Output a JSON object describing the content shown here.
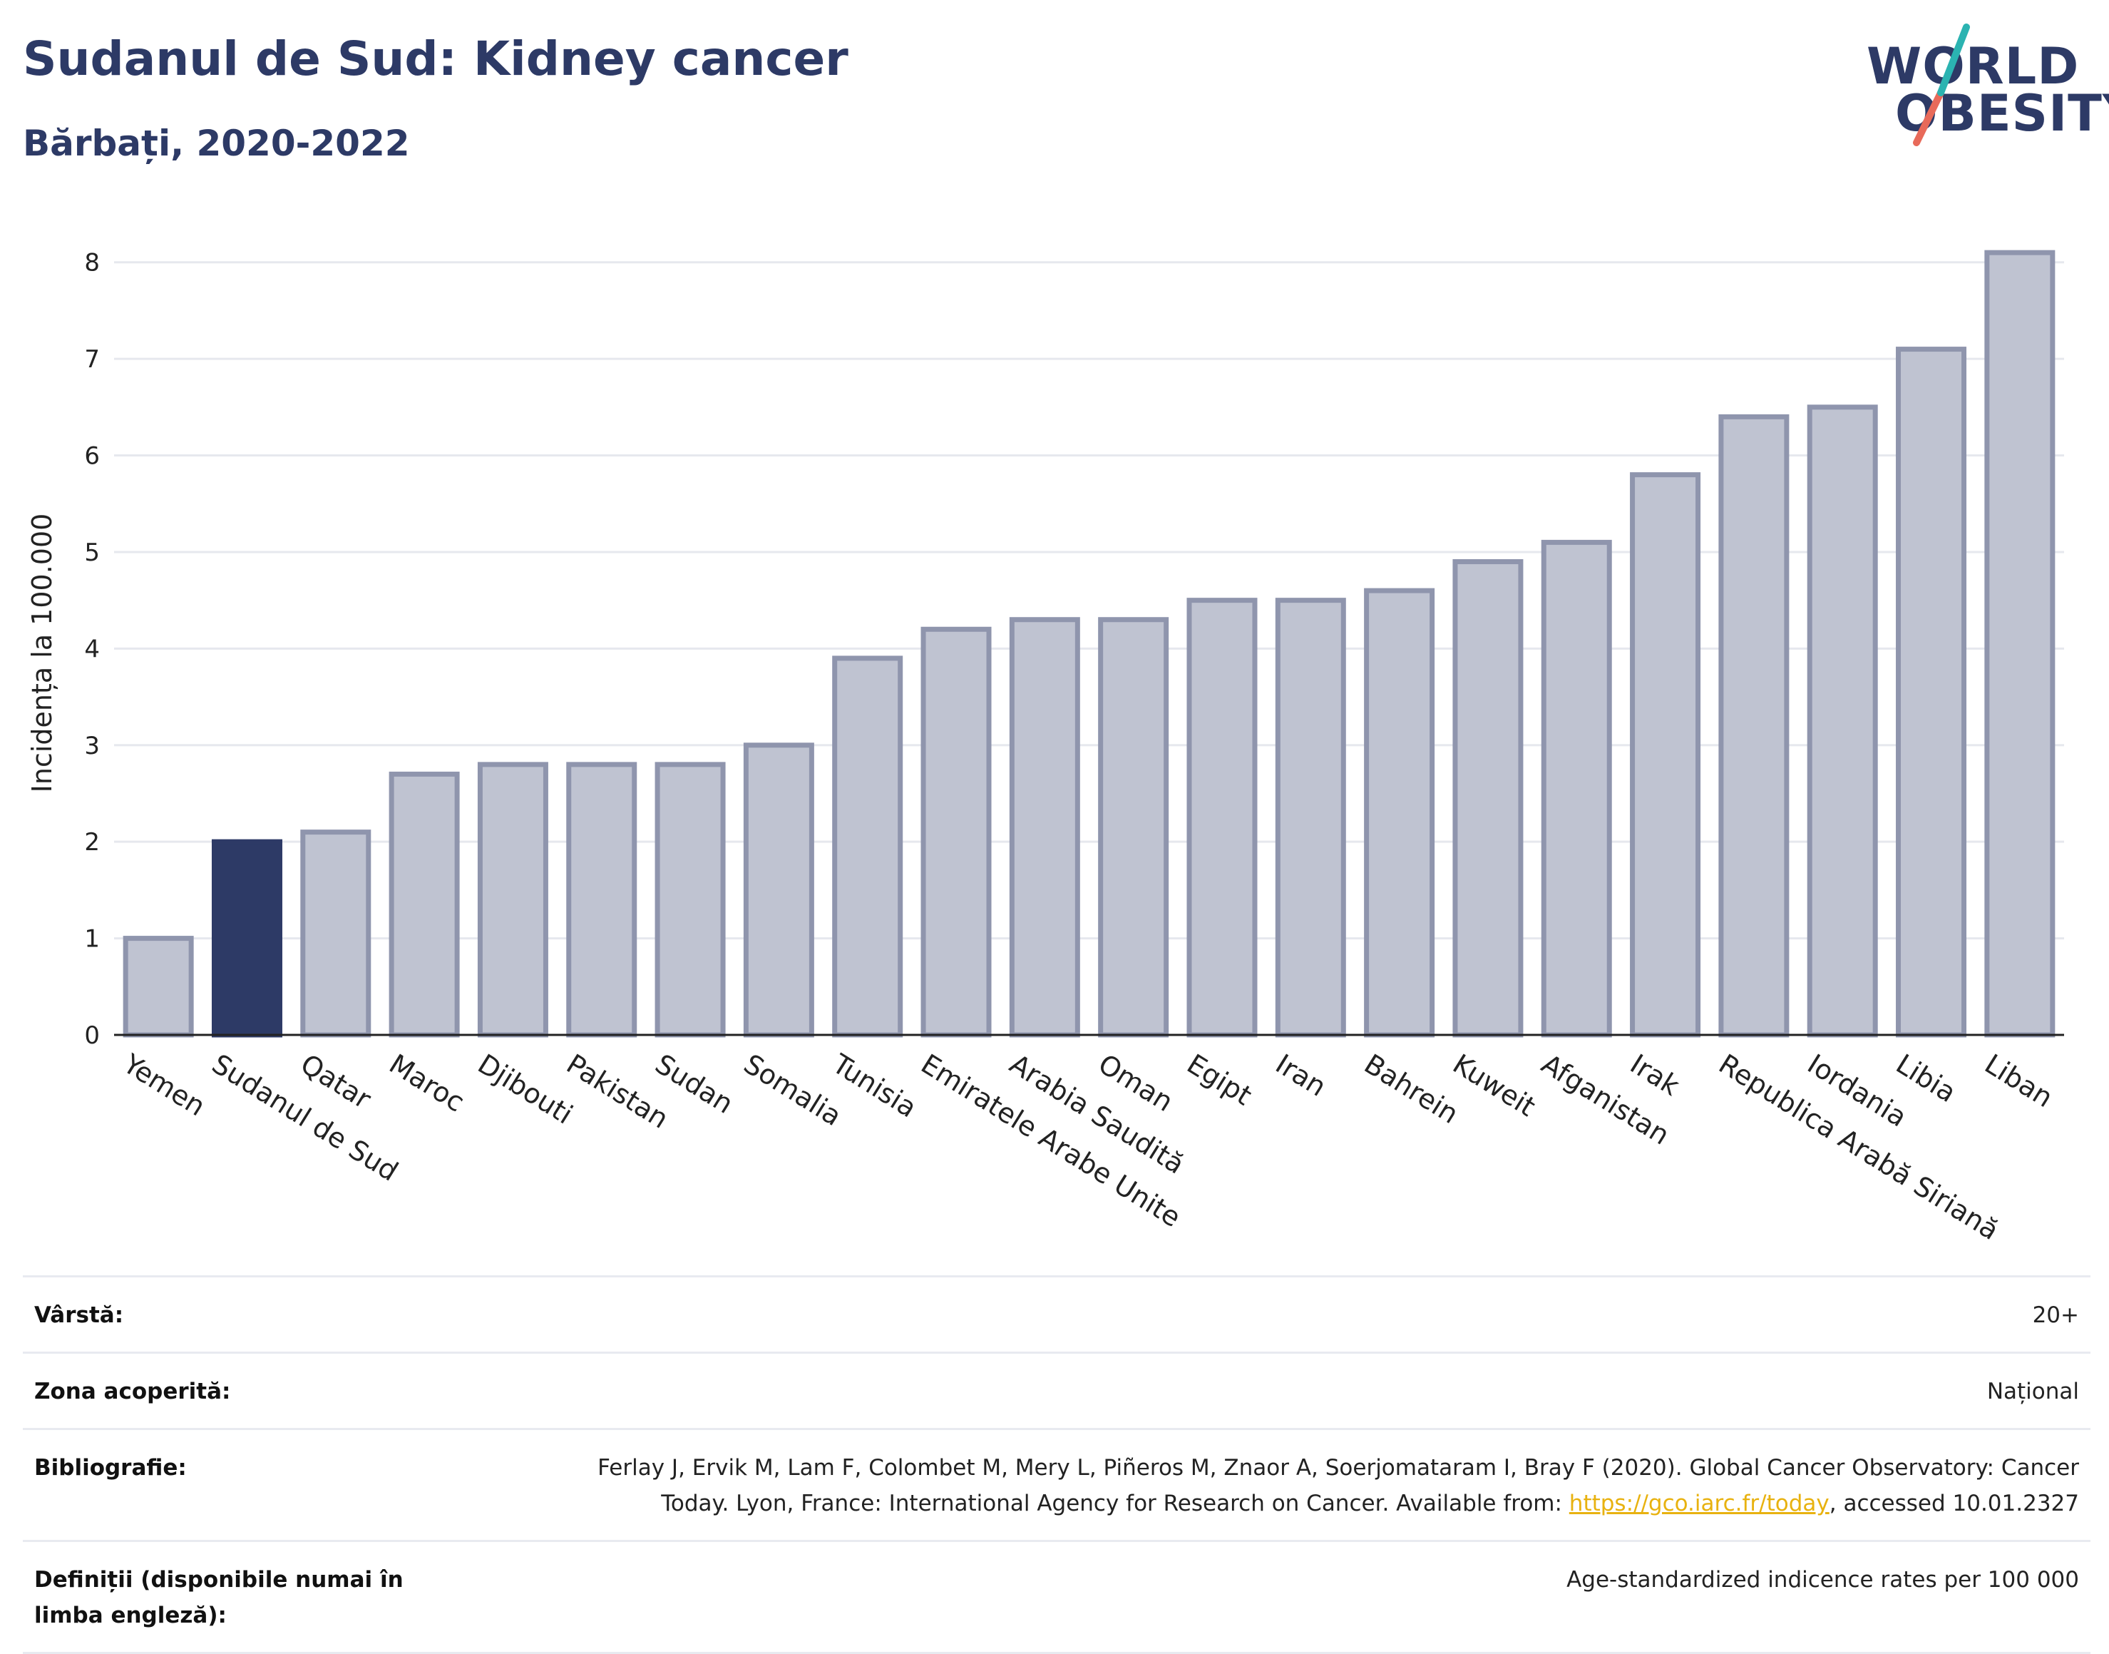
{
  "title": "Sudanul de Sud: Kidney cancer",
  "subtitle": "Bărbați, 2020-2022",
  "logo": {
    "line1": "WORLD",
    "line2": "OBESITY"
  },
  "colors": {
    "highlight": "#2d3a66",
    "bar": "#bfc3d1",
    "bar_stroke": "#8f95ad",
    "title": "#2d3a66",
    "logo_teal": "#2bb3b1",
    "logo_red": "#e86a5a"
  },
  "chart_data": {
    "type": "bar",
    "ylabel": "Incidența la 100.000",
    "xlabel": "",
    "ylim": [
      0,
      8.5
    ],
    "yticks": [
      0,
      1,
      2,
      3,
      4,
      5,
      6,
      7,
      8
    ],
    "grid": true,
    "highlight": "Sudanul de Sud",
    "categories": [
      "Yemen",
      "Sudanul de Sud",
      "Qatar",
      "Maroc",
      "Djibouti",
      "Pakistan",
      "Sudan",
      "Somalia",
      "Tunisia",
      "Emiratele Arabe Unite",
      "Arabia Saudită",
      "Oman",
      "Egipt",
      "Iran",
      "Bahrein",
      "Kuweit",
      "Afganistan",
      "Irak",
      "Republica Arabă Siriană",
      "Iordania",
      "Libia",
      "Liban"
    ],
    "values": [
      1.0,
      2.0,
      2.1,
      2.7,
      2.8,
      2.8,
      2.8,
      3.0,
      3.9,
      4.2,
      4.3,
      4.3,
      4.5,
      4.5,
      4.6,
      4.9,
      5.1,
      5.8,
      6.4,
      6.5,
      7.1,
      8.1
    ]
  },
  "info": {
    "age": {
      "label": "Vârstă:",
      "value": "20+"
    },
    "area": {
      "label": "Zona acoperită:",
      "value": "Național"
    },
    "bibliography": {
      "label": "Bibliografie:",
      "text": "Ferlay J, Ervik M, Lam F, Colombet M, Mery L, Piñeros M, Znaor A, Soerjomataram I, Bray F (2020). Global Cancer Observatory: Cancer Today. Lyon, France: International Agency for Research on Cancer. Available from: ",
      "link": "https://gco.iarc.fr/today",
      "suffix": ", accessed 10.01.2327"
    },
    "definitions": {
      "label": "Definiții (disponibile numai în limba engleză):",
      "value": "Age-standardized indicence rates per 100 000"
    }
  }
}
